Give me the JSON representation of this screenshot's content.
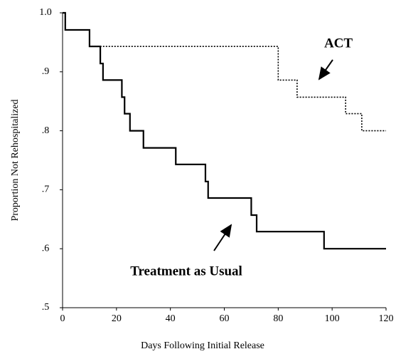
{
  "chart_data": {
    "type": "step",
    "x_label": "Days Following Initial Release",
    "y_label": "Proportion Not Rehospitalized",
    "xlim": [
      0,
      120
    ],
    "xticks": [
      0,
      20,
      40,
      60,
      80,
      100,
      120
    ],
    "ylim": [
      0.5,
      1.0
    ],
    "yticks": [
      {
        "value": 0.5,
        "label": ".5"
      },
      {
        "value": 0.6,
        "label": ".6"
      },
      {
        "value": 0.7,
        "label": ".7"
      },
      {
        "value": 0.8,
        "label": ".8"
      },
      {
        "value": 0.9,
        "label": ".9"
      },
      {
        "value": 1.0,
        "label": "1.0"
      }
    ],
    "series": [
      {
        "name": "ACT",
        "color": "#000000",
        "dashed": true,
        "x": [
          0,
          1,
          10,
          80,
          87,
          105,
          111,
          120
        ],
        "values": [
          1.0,
          0.971,
          0.943,
          0.886,
          0.857,
          0.829,
          0.8,
          0.8
        ]
      },
      {
        "name": "Treatment as Usual",
        "color": "#000000",
        "dashed": false,
        "x": [
          0,
          1,
          10,
          14,
          15,
          22,
          23,
          25,
          30,
          42,
          53,
          54,
          70,
          72,
          97,
          120
        ],
        "values": [
          1.0,
          0.971,
          0.943,
          0.914,
          0.886,
          0.857,
          0.829,
          0.8,
          0.771,
          0.743,
          0.714,
          0.686,
          0.657,
          0.629,
          0.6,
          0.6
        ]
      }
    ]
  }
}
